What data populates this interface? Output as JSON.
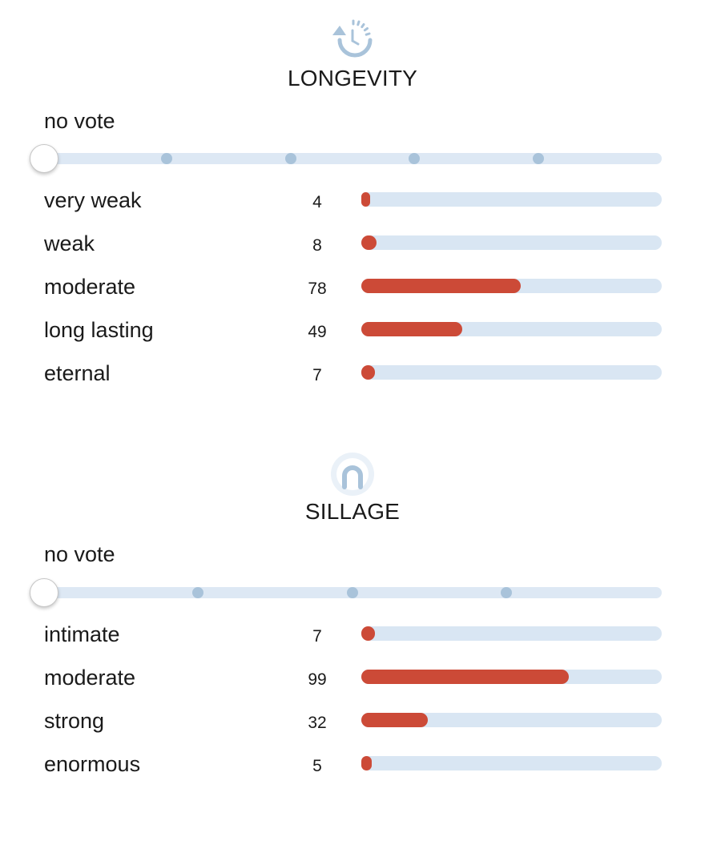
{
  "colors": {
    "fill": "#cc4a37",
    "track": "#d9e6f3",
    "slider_dot": "#a9c3da",
    "icon": "#a9c3da"
  },
  "longevity": {
    "icon": "clock-arrow-icon",
    "title": "LONGEVITY",
    "vote_label": "no vote",
    "slider": {
      "steps": 6,
      "selected_index": 0
    },
    "rows": [
      {
        "label": "very weak",
        "count": "4",
        "percent": 2
      },
      {
        "label": "weak",
        "count": "8",
        "percent": 5
      },
      {
        "label": "moderate",
        "count": "78",
        "percent": 53
      },
      {
        "label": "long lasting",
        "count": "49",
        "percent": 33.5
      },
      {
        "label": "eternal",
        "count": "7",
        "percent": 4.5
      }
    ]
  },
  "sillage": {
    "icon": "person-aura-icon",
    "title": "SILLAGE",
    "vote_label": "no vote",
    "slider": {
      "steps": 5,
      "selected_index": 0
    },
    "rows": [
      {
        "label": "intimate",
        "count": "7",
        "percent": 4.5
      },
      {
        "label": "moderate",
        "count": "99",
        "percent": 69
      },
      {
        "label": "strong",
        "count": "32",
        "percent": 22
      },
      {
        "label": "enormous",
        "count": "5",
        "percent": 3.5
      }
    ]
  }
}
